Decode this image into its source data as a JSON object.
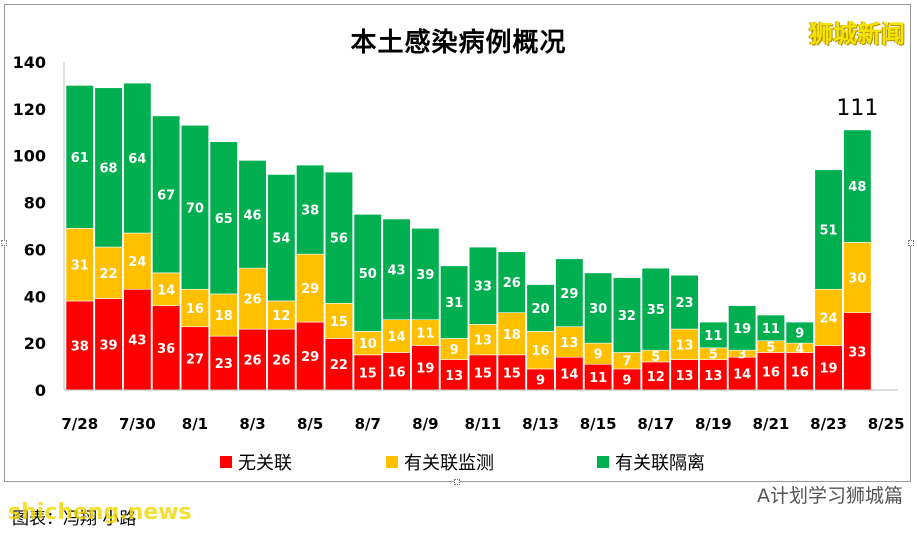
{
  "watermark_top": "狮城新闻",
  "caption": "图表：冯翔 小路",
  "watermark_bottom_left": "shicheng.news",
  "watermark_bottom_right": "A计划学习狮城篇",
  "chart_data": {
    "type": "bar",
    "stacked": true,
    "title": "本土感染病例概况",
    "categories": [
      "7/28",
      "7/29",
      "7/30",
      "7/31",
      "8/1",
      "8/2",
      "8/3",
      "8/4",
      "8/5",
      "8/6",
      "8/7",
      "8/8",
      "8/9",
      "8/10",
      "8/11",
      "8/12",
      "8/13",
      "8/14",
      "8/15",
      "8/16",
      "8/17",
      "8/18",
      "8/19",
      "8/20",
      "8/21",
      "8/22",
      "8/23",
      "8/24"
    ],
    "x_tick_labels": [
      "7/28",
      "7/30",
      "8/1",
      "8/3",
      "8/5",
      "8/7",
      "8/9",
      "8/11",
      "8/13",
      "8/15",
      "8/17",
      "8/19",
      "8/21",
      "8/23",
      "8/25"
    ],
    "series": [
      {
        "name": "无关联",
        "color": "#ff0000",
        "values": [
          38,
          39,
          43,
          36,
          27,
          23,
          26,
          26,
          29,
          22,
          15,
          16,
          19,
          13,
          15,
          15,
          9,
          14,
          11,
          9,
          12,
          13,
          13,
          14,
          16,
          16,
          19,
          33
        ]
      },
      {
        "name": "有关联监测",
        "color": "#ffc000",
        "values": [
          31,
          22,
          24,
          14,
          16,
          18,
          26,
          12,
          29,
          15,
          10,
          14,
          11,
          9,
          13,
          18,
          16,
          13,
          9,
          7,
          5,
          13,
          5,
          3,
          5,
          4,
          24,
          30
        ]
      },
      {
        "name": "有关联隔离",
        "color": "#00b050",
        "values": [
          61,
          68,
          64,
          67,
          70,
          65,
          46,
          54,
          38,
          56,
          50,
          43,
          39,
          31,
          33,
          26,
          20,
          29,
          30,
          32,
          35,
          23,
          11,
          19,
          11,
          9,
          51,
          48
        ]
      }
    ],
    "annotations": [
      {
        "category": "8/24",
        "text": "111"
      }
    ],
    "ylim": [
      0,
      140
    ],
    "yticks": [
      0,
      20,
      40,
      60,
      80,
      100,
      120,
      140
    ],
    "grid": false,
    "legend": "bottom",
    "data_label_color": "#ffffff",
    "xlabel": "",
    "ylabel": ""
  }
}
